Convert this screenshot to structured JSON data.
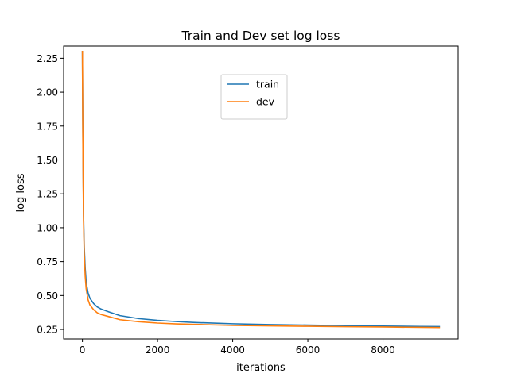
{
  "chart_data": {
    "type": "line",
    "title": "Train and Dev set log loss",
    "xlabel": "iterations",
    "ylabel": "log loss",
    "xlim": [
      -500,
      10000
    ],
    "ylim": [
      0.18,
      2.34
    ],
    "xticks": [
      0,
      2000,
      4000,
      6000,
      8000
    ],
    "xtick_labels": [
      "0",
      "2000",
      "4000",
      "6000",
      "8000"
    ],
    "yticks": [
      0.25,
      0.5,
      0.75,
      1.0,
      1.25,
      1.5,
      1.75,
      2.0,
      2.25
    ],
    "ytick_labels": [
      "0.25",
      "0.50",
      "0.75",
      "1.00",
      "1.25",
      "1.50",
      "1.75",
      "2.00",
      "2.25"
    ],
    "grid": false,
    "legend_position": "upper-center",
    "series": [
      {
        "name": "train",
        "color": "#1f77b4",
        "x": [
          0,
          10,
          20,
          30,
          50,
          75,
          100,
          150,
          200,
          300,
          400,
          500,
          700,
          1000,
          1500,
          2000,
          2500,
          3000,
          4000,
          5000,
          6000,
          7000,
          8000,
          9000,
          9500
        ],
        "y": [
          2.3,
          1.8,
          1.4,
          1.1,
          0.85,
          0.7,
          0.6,
          0.52,
          0.48,
          0.44,
          0.415,
          0.4,
          0.38,
          0.352,
          0.33,
          0.317,
          0.308,
          0.301,
          0.292,
          0.286,
          0.282,
          0.278,
          0.275,
          0.272,
          0.271
        ]
      },
      {
        "name": "dev",
        "color": "#ff7f0e",
        "x": [
          0,
          10,
          20,
          30,
          50,
          75,
          100,
          150,
          200,
          300,
          400,
          500,
          700,
          1000,
          1500,
          2000,
          2500,
          3000,
          4000,
          5000,
          6000,
          7000,
          8000,
          9000,
          9500
        ],
        "y": [
          2.3,
          1.75,
          1.35,
          1.05,
          0.8,
          0.64,
          0.55,
          0.47,
          0.43,
          0.395,
          0.372,
          0.36,
          0.345,
          0.322,
          0.307,
          0.297,
          0.291,
          0.287,
          0.28,
          0.276,
          0.273,
          0.27,
          0.268,
          0.265,
          0.264
        ]
      }
    ]
  }
}
